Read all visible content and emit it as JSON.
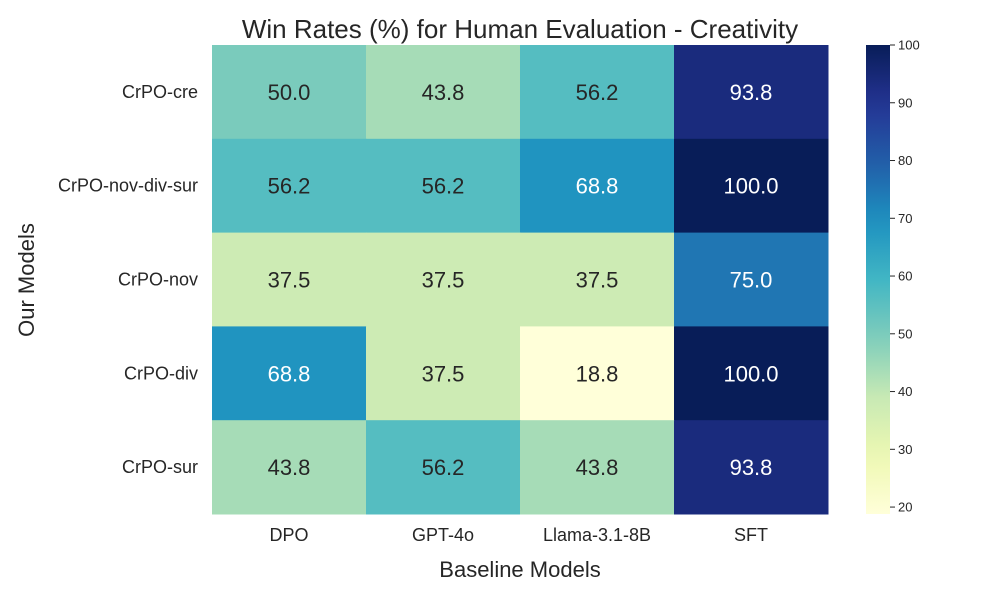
{
  "chart_data": {
    "type": "heatmap",
    "title": "Win Rates (%) for Human Evaluation - Creativity",
    "xlabel": "Baseline Models",
    "ylabel": "Our Models",
    "x_categories": [
      "DPO",
      "GPT-4o",
      "Llama-3.1-8B",
      "SFT"
    ],
    "y_categories": [
      "CrPO-cre",
      "CrPO-nov-div-sur",
      "CrPO-nov",
      "CrPO-div",
      "CrPO-sur"
    ],
    "values": [
      [
        50.0,
        43.8,
        56.2,
        93.8
      ],
      [
        56.2,
        56.2,
        68.8,
        100.0
      ],
      [
        37.5,
        37.5,
        37.5,
        75.0
      ],
      [
        68.8,
        37.5,
        18.8,
        100.0
      ],
      [
        43.8,
        56.2,
        43.8,
        93.8
      ]
    ],
    "value_format": "0.1f",
    "colormap": "YlGnBu",
    "color_range": [
      18.8,
      100.0
    ],
    "colorbar": {
      "ticks": [
        20,
        30,
        40,
        50,
        60,
        70,
        80,
        90,
        100
      ]
    },
    "legend": "colorbar-right"
  }
}
